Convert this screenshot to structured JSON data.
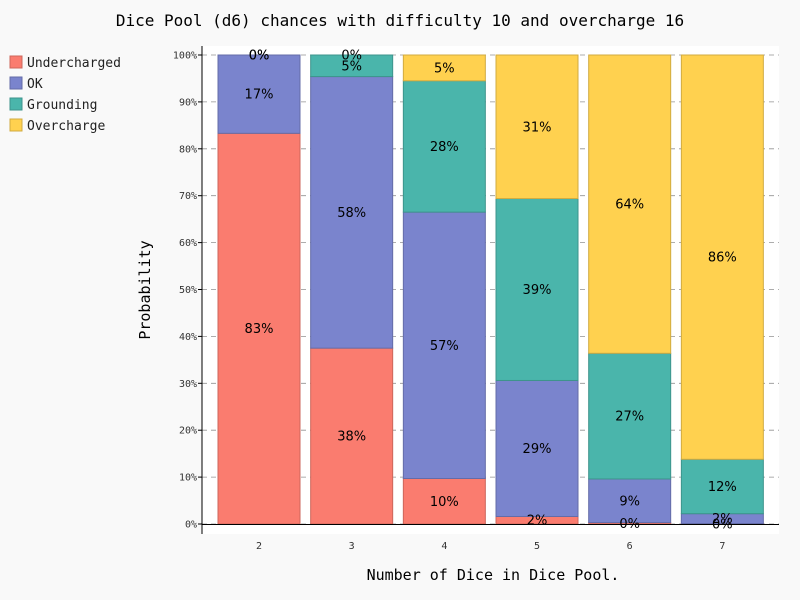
{
  "chart_data": {
    "type": "bar",
    "stacked": true,
    "title": "Dice Pool (d6) chances with difficulty 10 and overcharge 16",
    "xlabel": "Number of Dice in Dice Pool.",
    "ylabel": "Probability",
    "categories": [
      "2",
      "3",
      "4",
      "5",
      "6",
      "7"
    ],
    "ylim": [
      0,
      100
    ],
    "yticks": [
      "0%",
      "10%",
      "20%",
      "30%",
      "40%",
      "50%",
      "60%",
      "70%",
      "80%",
      "90%",
      "100%"
    ],
    "grid": true,
    "legend_position": "top-left",
    "series": [
      {
        "name": "Undercharged",
        "color": "#fa7c6f",
        "values": [
          83.3,
          37.5,
          9.7,
          1.6,
          0.3,
          0.1
        ],
        "labels": [
          "83%",
          "38%",
          "10%",
          "2%",
          "0%",
          ""
        ]
      },
      {
        "name": "OK",
        "color": "#7a84cd",
        "values": [
          16.7,
          57.9,
          56.8,
          29.0,
          9.3,
          2.1
        ],
        "labels": [
          "17%",
          "58%",
          "57%",
          "29%",
          "9%",
          "2%"
        ]
      },
      {
        "name": "Grounding",
        "color": "#4ab5ab",
        "values": [
          0.0,
          4.6,
          28.0,
          38.8,
          26.8,
          11.6
        ],
        "labels": [
          "0%",
          "5%",
          "28%",
          "39%",
          "27%",
          "12%"
        ]
      },
      {
        "name": "Overcharge",
        "color": "#ffd14f",
        "values": [
          0.0,
          0.0,
          5.5,
          30.6,
          63.6,
          86.2
        ],
        "labels": [
          "0%",
          "0%",
          "5%",
          "31%",
          "64%",
          "86%"
        ]
      }
    ],
    "extra_labels": [
      {
        "category": "7",
        "text": "0%"
      }
    ]
  }
}
